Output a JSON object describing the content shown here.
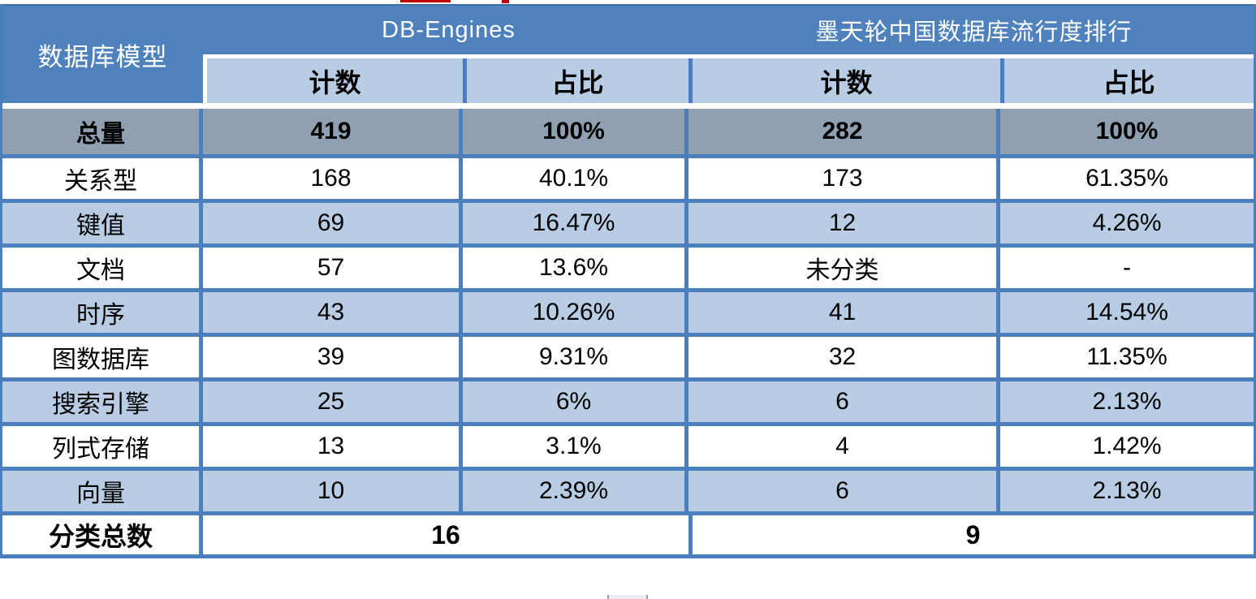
{
  "colors": {
    "header_blue": "#4F81BD",
    "subheader_light_blue": "#B8CCE4",
    "row_alt_light_blue": "#B8CCE4",
    "total_row_gray": "#8FA0B3",
    "border_blue": "#4A7EBC",
    "header_text": "#FFFFFF",
    "body_text": "#000000",
    "artifact_red": "#C00000"
  },
  "chart_data": {
    "type": "table",
    "corner_header": "数据库模型",
    "column_groups": [
      {
        "label": "DB-Engines",
        "span": 2
      },
      {
        "label": "墨天轮中国数据库流行度排行",
        "span": 2
      }
    ],
    "sub_headers": [
      "计数",
      "占比",
      "计数",
      "占比"
    ],
    "total_row": {
      "label": "总量",
      "values": [
        "419",
        "100%",
        "282",
        "100%"
      ]
    },
    "rows": [
      {
        "label": "关系型",
        "values": [
          "168",
          "40.1%",
          "173",
          "61.35%"
        ]
      },
      {
        "label": "键值",
        "values": [
          "69",
          "16.47%",
          "12",
          "4.26%"
        ]
      },
      {
        "label": "文档",
        "values": [
          "57",
          "13.6%",
          "未分类",
          "-"
        ]
      },
      {
        "label": "时序",
        "values": [
          "43",
          "10.26%",
          "41",
          "14.54%"
        ]
      },
      {
        "label": "图数据库",
        "values": [
          "39",
          "9.31%",
          "32",
          "11.35%"
        ]
      },
      {
        "label": "搜索引擎",
        "values": [
          "25",
          "6%",
          "6",
          "2.13%"
        ]
      },
      {
        "label": "列式存储",
        "values": [
          "13",
          "3.1%",
          "4",
          "1.42%"
        ]
      },
      {
        "label": "向量",
        "values": [
          "10",
          "2.39%",
          "6",
          "2.13%"
        ]
      }
    ],
    "footer_row": {
      "label": "分类总数",
      "merged_values": [
        "16",
        "9"
      ]
    }
  }
}
